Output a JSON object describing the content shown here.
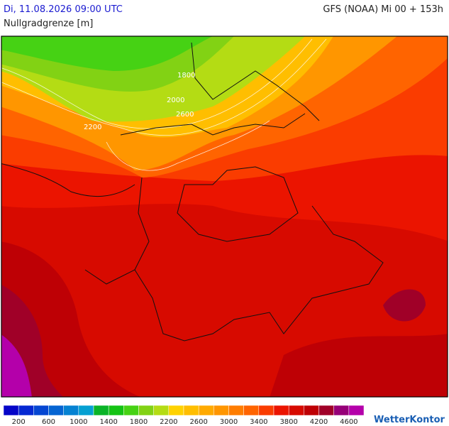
{
  "header": {
    "valid_time": "Di, 11.08.2026 09:00 UTC",
    "model_run": "GFS (NOAA) Mi 00 + 153h",
    "parameter": "Nullgradgrenze [m]"
  },
  "map": {
    "contour_labels": [
      "1800",
      "2000",
      "2600",
      "2200"
    ]
  },
  "colorbar": {
    "colors": [
      "#0505c8",
      "#0528d2",
      "#0546d2",
      "#0564d2",
      "#0582d2",
      "#05a0d2",
      "#0ab428",
      "#14c314",
      "#46d214",
      "#82d214",
      "#b4dc14",
      "#ffd200",
      "#ffbe00",
      "#ffaa00",
      "#ff9600",
      "#ff7d00",
      "#ff6400",
      "#fa3c00",
      "#eb1400",
      "#d70a00",
      "#be0005",
      "#a00028",
      "#960078",
      "#b400aa"
    ],
    "labels": [
      "200",
      "600",
      "1000",
      "1400",
      "1800",
      "2200",
      "2600",
      "3000",
      "3400",
      "3800",
      "4200",
      "4600"
    ]
  },
  "logo": "WetterKontor"
}
